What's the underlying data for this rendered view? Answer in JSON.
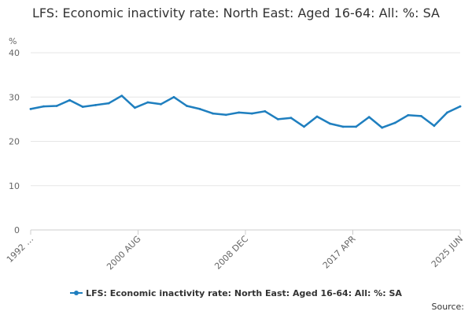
{
  "chart_data": {
    "type": "line",
    "title": "LFS: Economic inactivity rate: North East: Aged 16-64: All: %: SA",
    "ylabel": "%",
    "xlabel": "",
    "ylim": [
      0,
      40
    ],
    "yticks": [
      0,
      10,
      20,
      30,
      40
    ],
    "xticks": [
      "1992 …",
      "2000 AUG",
      "2008 DEC",
      "2017 APR",
      "2025 JUN"
    ],
    "grid": true,
    "legend_position": "bottom",
    "source_label": "Source:",
    "series": [
      {
        "name": "LFS: Economic inactivity rate: North East: Aged 16-64: All: %: SA",
        "color": "#1f7fbf",
        "x": [
          "1992 …",
          "1993",
          "1994",
          "1995",
          "1996",
          "1997",
          "1998",
          "1999",
          "2000 AUG",
          "2001",
          "2002",
          "2003",
          "2004",
          "2005",
          "2006",
          "2007",
          "2008 DEC",
          "2009",
          "2010",
          "2011",
          "2012",
          "2013",
          "2014",
          "2015",
          "2016",
          "2017 APR",
          "2018",
          "2019",
          "2020",
          "2021",
          "2022",
          "2023",
          "2024",
          "2025 JUN"
        ],
        "values": [
          27.3,
          27.9,
          28.0,
          29.3,
          27.8,
          28.2,
          28.6,
          30.3,
          27.6,
          28.8,
          28.4,
          30.0,
          28.0,
          27.3,
          26.3,
          26.0,
          26.5,
          26.3,
          26.8,
          25.0,
          25.3,
          23.3,
          25.6,
          24.0,
          23.3,
          23.3,
          25.5,
          23.1,
          24.2,
          25.9,
          25.7,
          23.5,
          26.5,
          27.9
        ]
      }
    ]
  }
}
